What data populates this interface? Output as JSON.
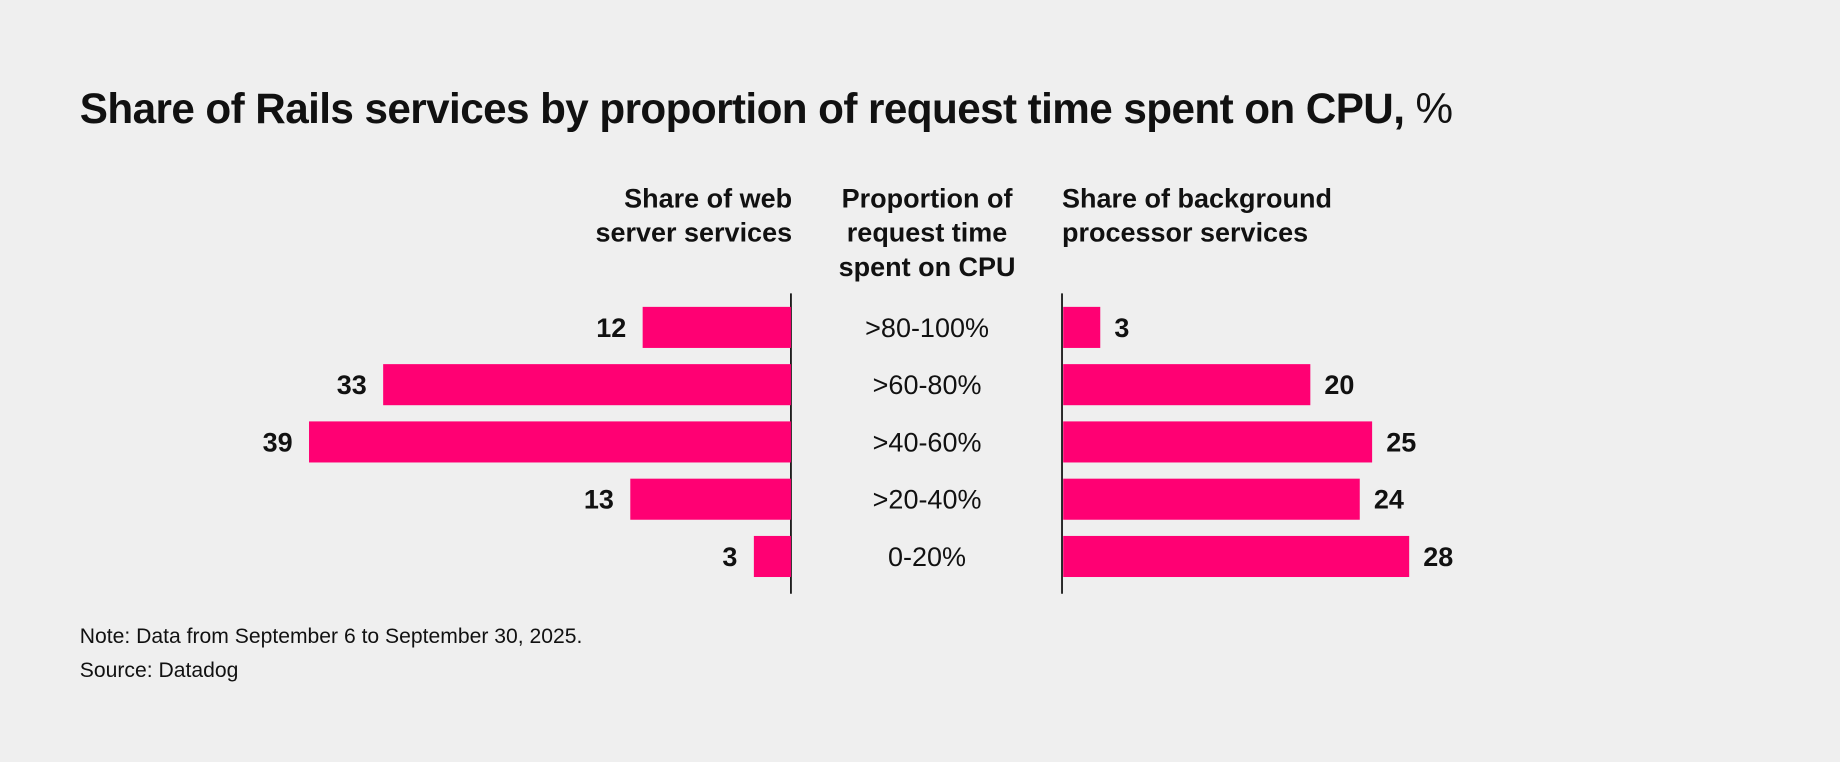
{
  "title": "Share of Rails services by proportion of request time spent on CPU,",
  "title_unit": "%",
  "chart_data": {
    "type": "bar",
    "orientation": "horizontal-butterfly",
    "categories": [
      ">80-100%",
      ">60-80%",
      ">40-60%",
      ">20-40%",
      "0-20%"
    ],
    "category_header": "Proportion of request time spent on CPU",
    "series": [
      {
        "name": "Share of web server services",
        "values": [
          12,
          33,
          39,
          13,
          3
        ],
        "side": "left"
      },
      {
        "name": "Share of background processor services",
        "values": [
          3,
          20,
          25,
          24,
          28
        ],
        "side": "right"
      }
    ],
    "bar_color": "#ff0073",
    "grid": false
  },
  "headers": {
    "left": [
      "Share of web",
      "server services"
    ],
    "center": [
      "Proportion of",
      "request time",
      "spent on CPU"
    ],
    "right": [
      "Share of background",
      "processor services"
    ]
  },
  "note": "Note: Data from September 6 to September 30, 2025.",
  "source": "Source: Datadog"
}
